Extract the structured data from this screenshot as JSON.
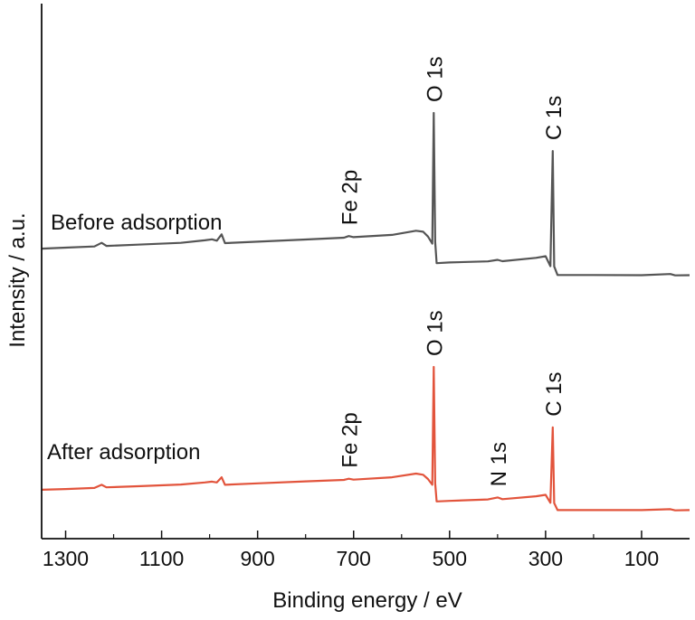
{
  "chart_data": {
    "type": "line",
    "xlabel": "Binding energy / eV",
    "ylabel": "Intensity / a.u.",
    "xlim": [
      1350,
      0
    ],
    "x_reversed": true,
    "xticks": [
      1300,
      1100,
      900,
      700,
      500,
      300,
      100
    ],
    "grid": false,
    "series": [
      {
        "name": "Before adsorption",
        "color": "#555555",
        "points": [
          [
            1350,
            18.0
          ],
          [
            1300,
            18.6
          ],
          [
            1240,
            19.3
          ],
          [
            1225,
            21.5
          ],
          [
            1215,
            19.6
          ],
          [
            1150,
            20.4
          ],
          [
            1060,
            21.5
          ],
          [
            1010,
            23.0
          ],
          [
            995,
            23.6
          ],
          [
            985,
            22.8
          ],
          [
            975,
            26.6
          ],
          [
            968,
            21.3
          ],
          [
            900,
            22.2
          ],
          [
            800,
            23.5
          ],
          [
            720,
            24.6
          ],
          [
            710,
            25.6
          ],
          [
            700,
            24.9
          ],
          [
            620,
            26.3
          ],
          [
            570,
            28.8
          ],
          [
            555,
            28.2
          ],
          [
            545,
            25.3
          ],
          [
            536,
            21.0
          ],
          [
            533,
            100.0
          ],
          [
            530,
            22.0
          ],
          [
            527,
            9.2
          ],
          [
            500,
            9.6
          ],
          [
            420,
            10.3
          ],
          [
            400,
            11.2
          ],
          [
            390,
            10.4
          ],
          [
            320,
            12.4
          ],
          [
            300,
            13.4
          ],
          [
            290,
            7.4
          ],
          [
            285,
            77.0
          ],
          [
            282,
            7.2
          ],
          [
            275,
            2.0
          ],
          [
            200,
            2.0
          ],
          [
            100,
            1.9
          ],
          [
            40,
            2.6
          ],
          [
            30,
            1.8
          ],
          [
            0,
            1.9
          ]
        ]
      },
      {
        "name": "After adsorption",
        "color": "#e2543c",
        "points": [
          [
            1350,
            14.5
          ],
          [
            1300,
            15.0
          ],
          [
            1240,
            15.8
          ],
          [
            1225,
            18.0
          ],
          [
            1215,
            16.2
          ],
          [
            1150,
            17.0
          ],
          [
            1060,
            18.2
          ],
          [
            1010,
            19.6
          ],
          [
            995,
            20.2
          ],
          [
            985,
            19.6
          ],
          [
            975,
            23.2
          ],
          [
            968,
            18.0
          ],
          [
            900,
            19.0
          ],
          [
            800,
            20.4
          ],
          [
            720,
            21.4
          ],
          [
            710,
            22.2
          ],
          [
            700,
            21.6
          ],
          [
            620,
            23.2
          ],
          [
            570,
            25.8
          ],
          [
            555,
            25.0
          ],
          [
            545,
            22.0
          ],
          [
            536,
            18.0
          ],
          [
            533,
            100.0
          ],
          [
            530,
            19.0
          ],
          [
            527,
            6.4
          ],
          [
            500,
            6.8
          ],
          [
            420,
            7.8
          ],
          [
            400,
            9.2
          ],
          [
            390,
            8.0
          ],
          [
            320,
            10.0
          ],
          [
            300,
            11.0
          ],
          [
            290,
            5.5
          ],
          [
            285,
            58.0
          ],
          [
            282,
            5.3
          ],
          [
            275,
            0.4
          ],
          [
            200,
            0.4
          ],
          [
            100,
            0.4
          ],
          [
            40,
            1.0
          ],
          [
            30,
            0.2
          ],
          [
            0,
            0.4
          ]
        ]
      }
    ],
    "peak_labels": [
      {
        "text": "O 1s",
        "x": 533,
        "series": 0
      },
      {
        "text": "C 1s",
        "x": 285,
        "series": 0
      },
      {
        "text": "Fe 2p",
        "x": 710,
        "series": 0
      },
      {
        "text": "O 1s",
        "x": 533,
        "series": 1
      },
      {
        "text": "C 1s",
        "x": 285,
        "series": 1
      },
      {
        "text": "Fe 2p",
        "x": 710,
        "series": 1
      },
      {
        "text": "N 1s",
        "x": 400,
        "series": 1
      }
    ]
  }
}
